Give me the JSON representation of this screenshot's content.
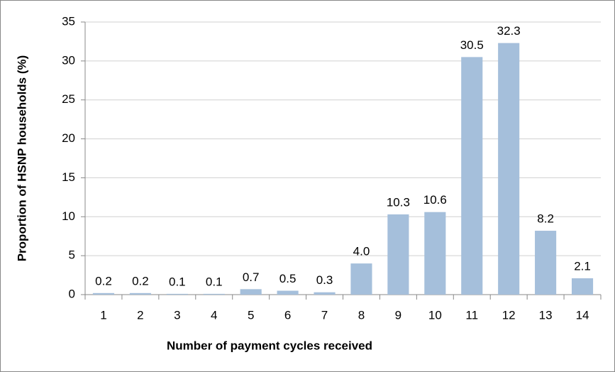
{
  "chart_data": {
    "type": "bar",
    "x_label": "Number of payment cycles received",
    "y_label": "Proportion of HSNP households (%)",
    "categories": [
      "1",
      "2",
      "3",
      "4",
      "5",
      "6",
      "7",
      "8",
      "9",
      "10",
      "11",
      "12",
      "13",
      "14"
    ],
    "values": [
      0.2,
      0.2,
      0.1,
      0.1,
      0.7,
      0.5,
      0.3,
      4,
      10.3,
      10.6,
      30.5,
      32.3,
      8.2,
      2.1
    ],
    "value_labels": [
      "0.2",
      "0.2",
      "0.1",
      "0.1",
      "0.7",
      "0.5",
      "0.3",
      "4.0",
      "10.3",
      "10.6",
      "30.5",
      "32.3",
      "8.2",
      "2.1"
    ],
    "color": "#a5bfdb",
    "ylim": [
      0,
      35
    ],
    "yticks": [
      0,
      5,
      10,
      15,
      20,
      25,
      30,
      35
    ],
    "grid": true
  }
}
